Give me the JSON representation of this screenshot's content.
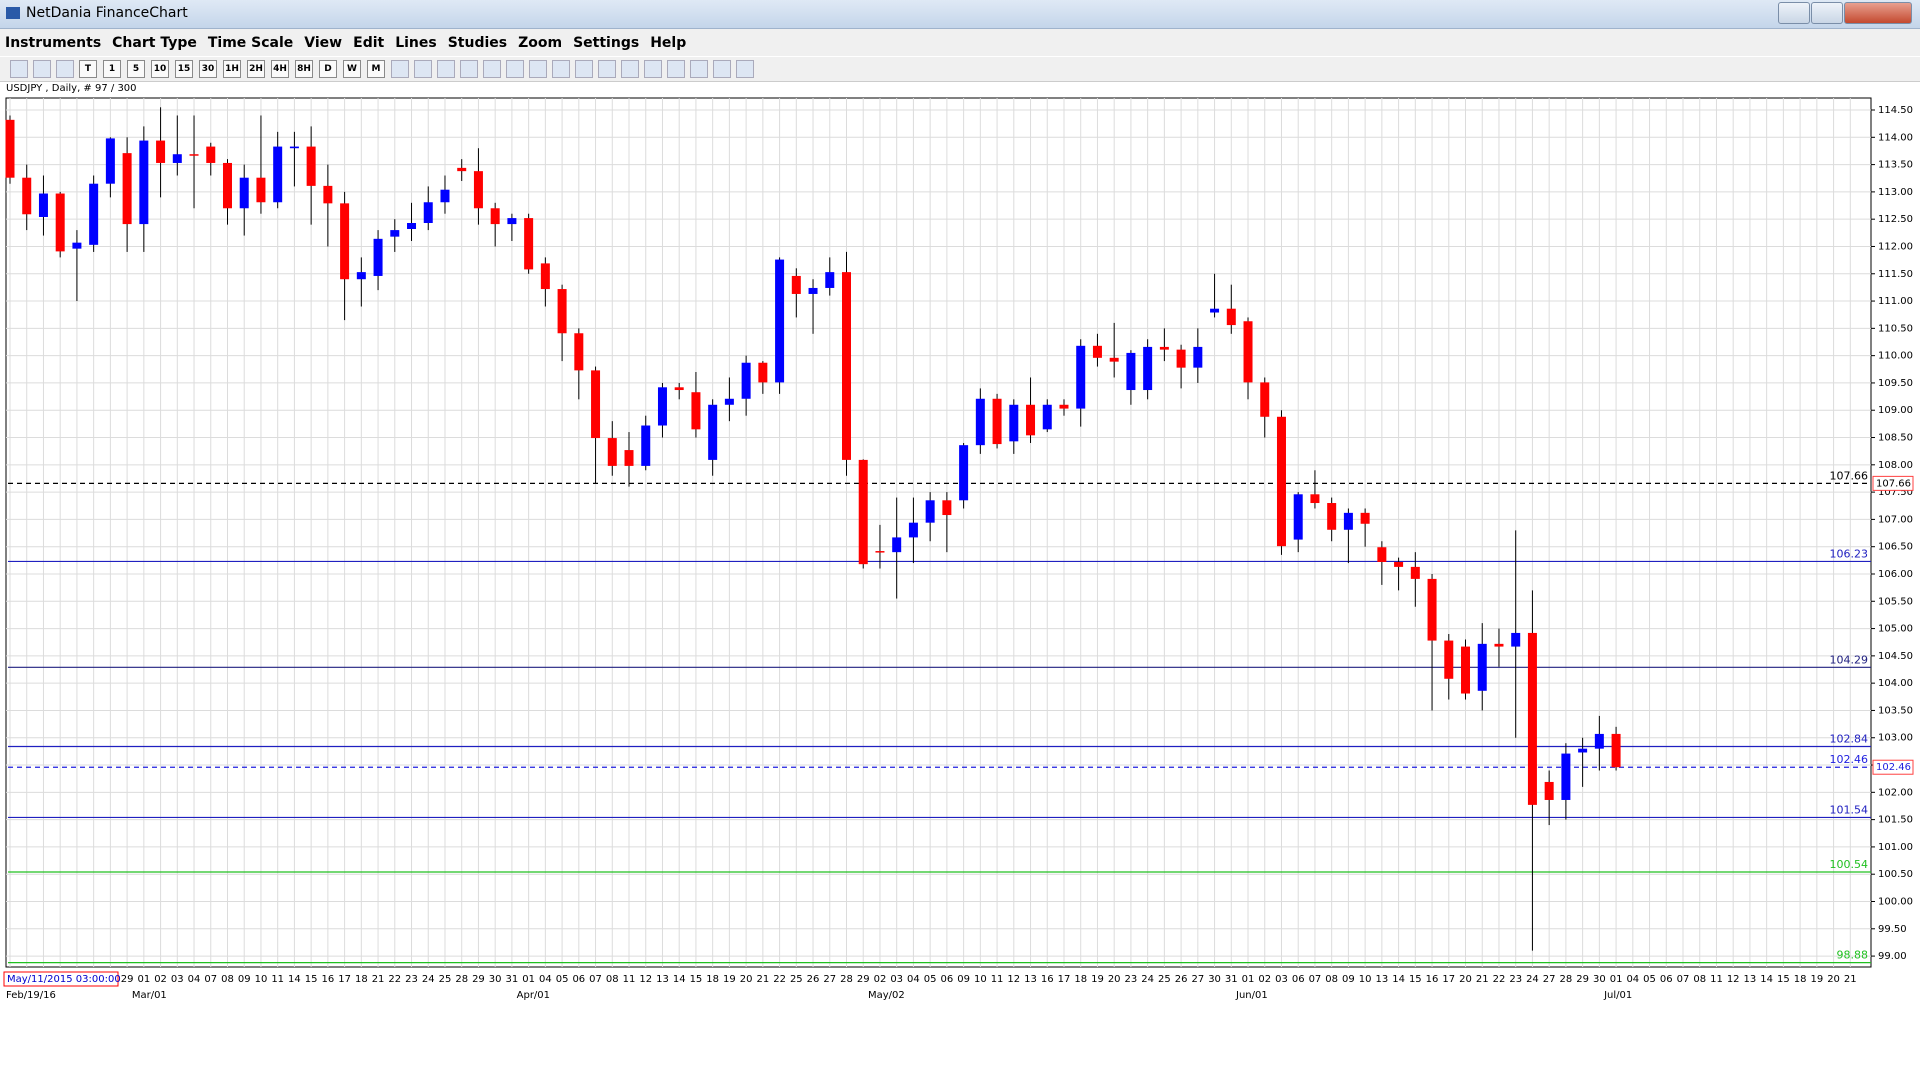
{
  "window_title": "NetDania FinanceChart",
  "menu": [
    "Instruments",
    "Chart Type",
    "Time Scale",
    "View",
    "Edit",
    "Lines",
    "Studies",
    "Zoom",
    "Settings",
    "Help"
  ],
  "toolbar": [
    "T",
    "1",
    "5",
    "10",
    "15",
    "30",
    "1H",
    "2H",
    "4H",
    "8H",
    "D",
    "W",
    "M"
  ],
  "chart_data": {
    "type": "candlestick",
    "title": "USDJPY , Daily, # 97 / 300",
    "categories": [
      null,
      null,
      null,
      null,
      null,
      null,
      null,
      "29",
      "01",
      "02",
      "03",
      "04",
      "07",
      "08",
      "09",
      "10",
      "11",
      "14",
      "15",
      "16",
      "17",
      "18",
      "21",
      "22",
      "23",
      "24",
      "25",
      "28",
      "29",
      "30",
      "31",
      "01",
      "04",
      "05",
      "06",
      "07",
      "08",
      "11",
      "12",
      "13",
      "14",
      "15",
      "18",
      "19",
      "20",
      "21",
      "22",
      "25",
      "26",
      "27",
      "28",
      "29",
      "02",
      "03",
      "04",
      "05",
      "06",
      "09",
      "10",
      "11",
      "12",
      "13",
      "16",
      "17",
      "18",
      "19",
      "20",
      "23",
      "24",
      "25",
      "26",
      "27",
      "30",
      "31",
      "01",
      "02",
      "03",
      "06",
      "07",
      "08",
      "09",
      "10",
      "13",
      "14",
      "15",
      "16",
      "17",
      "20",
      "21",
      "22",
      "23",
      "24",
      "27",
      "28",
      "29",
      "30",
      "01",
      "04",
      "05",
      "06",
      "07",
      "08",
      "11",
      "12",
      "13",
      "14",
      "15",
      "18",
      "19",
      "20",
      "21"
    ],
    "period_labels": [
      "Feb/19/16",
      null,
      null,
      null,
      null,
      null,
      null,
      null,
      "Mar/01",
      null,
      null,
      null,
      null,
      null,
      null,
      null,
      null,
      null,
      null,
      null,
      null,
      null,
      null,
      null,
      null,
      null,
      null,
      null,
      null,
      null,
      null,
      "Apr/01",
      null,
      null,
      null,
      null,
      null,
      null,
      null,
      null,
      null,
      null,
      null,
      null,
      null,
      null,
      null,
      null,
      null,
      null,
      null,
      null,
      "May/02",
      null,
      null,
      null,
      null,
      null,
      null,
      null,
      null,
      null,
      null,
      null,
      null,
      null,
      null,
      null,
      null,
      null,
      null,
      null,
      null,
      null,
      "Jun/01",
      null,
      null,
      null,
      null,
      null,
      null,
      null,
      null,
      null,
      null,
      null,
      null,
      null,
      null,
      null,
      null,
      null,
      null,
      null,
      null,
      null,
      "Jul/01",
      null,
      null,
      null,
      null,
      null,
      null,
      null,
      null,
      null,
      null,
      null,
      null,
      null,
      null
    ],
    "up_color": "#0000ff",
    "down_color": "#ff0000",
    "open": [
      114.32,
      113.26,
      112.54,
      112.97,
      111.96,
      112.03,
      113.15,
      113.71,
      112.41,
      113.94,
      113.53,
      113.69,
      113.83,
      113.53,
      112.7,
      113.26,
      112.81,
      113.8,
      113.83,
      113.11,
      112.79,
      111.4,
      111.46,
      112.18,
      112.32,
      112.43,
      112.81,
      113.44,
      113.38,
      112.7,
      112.41,
      112.52,
      111.69,
      111.22,
      110.41,
      109.73,
      108.49,
      108.27,
      107.98,
      108.72,
      109.42,
      109.33,
      108.09,
      109.1,
      109.21,
      109.87,
      109.51,
      111.46,
      111.13,
      111.24,
      111.53,
      108.09,
      106.42,
      106.4,
      106.67,
      106.94,
      107.35,
      107.35,
      108.36,
      109.21,
      108.43,
      109.1,
      108.65,
      109.1,
      109.03,
      110.18,
      109.96,
      109.37,
      109.37,
      110.16,
      110.11,
      109.78,
      110.79,
      110.86,
      110.63,
      109.51,
      108.88,
      106.63,
      107.46,
      107.3,
      106.81,
      107.12,
      106.49,
      106.22,
      106.13,
      105.91,
      104.78,
      104.67,
      103.86,
      104.72,
      104.67,
      104.92,
      102.19,
      101.86,
      102.73,
      102.8,
      103.07,
      null,
      null,
      null,
      null,
      null,
      null,
      null,
      null,
      null,
      null,
      null,
      null,
      null,
      null
    ],
    "high": [
      114.4,
      113.5,
      113.3,
      113.0,
      112.3,
      113.3,
      114.0,
      114.0,
      114.2,
      114.55,
      114.4,
      114.4,
      113.9,
      113.6,
      113.5,
      114.4,
      114.1,
      114.1,
      114.2,
      113.5,
      113.0,
      111.8,
      112.3,
      112.5,
      112.8,
      113.1,
      113.3,
      113.6,
      113.8,
      112.8,
      112.6,
      112.6,
      111.8,
      111.3,
      110.5,
      109.8,
      108.8,
      108.6,
      108.9,
      109.5,
      109.5,
      109.7,
      109.2,
      109.6,
      110.0,
      109.9,
      111.8,
      111.6,
      111.4,
      111.8,
      111.9,
      108.1,
      106.9,
      107.4,
      107.4,
      107.5,
      107.5,
      108.4,
      109.4,
      109.3,
      109.2,
      109.6,
      109.2,
      109.2,
      110.3,
      110.4,
      110.6,
      110.1,
      110.3,
      110.5,
      110.2,
      110.5,
      111.5,
      111.3,
      110.7,
      109.6,
      109.0,
      107.5,
      107.9,
      107.4,
      107.2,
      107.2,
      106.6,
      106.3,
      106.4,
      106.0,
      104.9,
      104.8,
      105.1,
      105.0,
      106.8,
      105.7,
      102.4,
      102.9,
      103.0,
      103.4,
      103.2,
      null,
      null,
      null,
      null,
      null,
      null,
      null,
      null,
      null,
      null,
      null,
      null,
      null,
      null
    ],
    "low": [
      113.15,
      112.3,
      112.2,
      111.8,
      111.0,
      111.9,
      112.9,
      111.9,
      111.9,
      112.9,
      113.3,
      112.7,
      113.3,
      112.4,
      112.2,
      112.6,
      112.7,
      113.1,
      112.4,
      112.0,
      110.65,
      110.9,
      111.2,
      111.9,
      112.1,
      112.3,
      112.6,
      113.2,
      112.4,
      112.0,
      112.1,
      111.5,
      110.9,
      109.9,
      109.2,
      107.65,
      107.8,
      107.6,
      107.9,
      108.5,
      109.2,
      108.5,
      107.8,
      108.8,
      108.9,
      109.3,
      109.3,
      110.7,
      110.4,
      111.1,
      107.8,
      106.1,
      106.1,
      105.55,
      106.2,
      106.6,
      106.4,
      107.2,
      108.2,
      108.3,
      108.2,
      108.4,
      108.6,
      108.9,
      108.7,
      109.8,
      109.6,
      109.1,
      109.2,
      109.9,
      109.4,
      109.5,
      110.7,
      110.4,
      109.2,
      108.5,
      106.35,
      106.4,
      107.2,
      106.6,
      106.2,
      106.5,
      105.8,
      105.7,
      105.4,
      103.5,
      103.7,
      103.7,
      103.5,
      104.3,
      103.0,
      99.1,
      101.4,
      101.5,
      102.1,
      102.4,
      102.4,
      null,
      null,
      null,
      null,
      null,
      null,
      null,
      null,
      null,
      null,
      null,
      null,
      null,
      null
    ],
    "close": [
      113.26,
      112.59,
      112.97,
      111.91,
      112.07,
      113.15,
      113.98,
      112.41,
      113.94,
      113.53,
      113.69,
      113.67,
      113.53,
      112.7,
      113.26,
      112.81,
      113.83,
      113.83,
      113.11,
      112.79,
      111.4,
      111.53,
      112.14,
      112.3,
      112.43,
      112.81,
      113.04,
      113.38,
      112.7,
      112.41,
      112.52,
      111.58,
      111.22,
      110.41,
      109.73,
      108.49,
      107.98,
      107.98,
      108.72,
      109.42,
      109.37,
      108.65,
      109.1,
      109.21,
      109.87,
      109.51,
      111.76,
      111.13,
      111.24,
      111.53,
      108.09,
      106.18,
      106.4,
      106.67,
      106.94,
      107.35,
      107.08,
      108.36,
      109.21,
      108.38,
      109.1,
      108.54,
      109.1,
      109.03,
      110.18,
      109.96,
      109.89,
      110.05,
      110.16,
      110.11,
      109.78,
      110.16,
      110.86,
      110.56,
      109.51,
      108.88,
      106.51,
      107.46,
      107.3,
      106.81,
      107.12,
      106.92,
      106.22,
      106.13,
      105.91,
      104.78,
      104.08,
      103.81,
      104.72,
      104.67,
      104.92,
      101.77,
      101.86,
      102.71,
      102.8,
      103.07,
      102.46,
      null,
      null,
      null,
      null,
      null,
      null,
      null,
      null,
      null,
      null,
      null,
      null,
      null,
      null
    ],
    "ylim": [
      98.8,
      114.72
    ],
    "yticks": [
      {
        "value": 99,
        "label": "99.00"
      },
      {
        "value": 99.5,
        "label": "99.50"
      },
      {
        "value": 100,
        "label": "100.00"
      },
      {
        "value": 100.5,
        "label": "100.50"
      },
      {
        "value": 101,
        "label": "101.00"
      },
      {
        "value": 101.5,
        "label": "101.50"
      },
      {
        "value": 102,
        "label": "102.00"
      },
      {
        "value": 102.5,
        "label": "102.50"
      },
      {
        "value": 103,
        "label": "103.00"
      },
      {
        "value": 103.5,
        "label": "103.50"
      },
      {
        "value": 104,
        "label": "104.00"
      },
      {
        "value": 104.5,
        "label": "104.50"
      },
      {
        "value": 105,
        "label": "105.00"
      },
      {
        "value": 105.5,
        "label": "105.50"
      },
      {
        "value": 106,
        "label": "106.00"
      },
      {
        "value": 106.5,
        "label": "106.50"
      },
      {
        "value": 107,
        "label": "107.00"
      },
      {
        "value": 107.5,
        "label": "107.50"
      },
      {
        "value": 108,
        "label": "108.00"
      },
      {
        "value": 108.5,
        "label": "108.50"
      },
      {
        "value": 109,
        "label": "109.00"
      },
      {
        "value": 109.5,
        "label": "109.50"
      },
      {
        "value": 110,
        "label": "110.00"
      },
      {
        "value": 110.5,
        "label": "110.50"
      },
      {
        "value": 111,
        "label": "111.00"
      },
      {
        "value": 111.5,
        "label": "111.50"
      },
      {
        "value": 112,
        "label": "112.00"
      },
      {
        "value": 112.5,
        "label": "112.50"
      },
      {
        "value": 113,
        "label": "113.00"
      },
      {
        "value": 113.5,
        "label": "113.50"
      },
      {
        "value": 114,
        "label": "114.00"
      },
      {
        "value": 114.5,
        "label": "114.50"
      }
    ],
    "grid": true,
    "lines": [
      {
        "value": 107.66,
        "color": "#000000",
        "dashed": true,
        "axis_box": true
      },
      {
        "value": 106.23,
        "color": "#2020c0",
        "dashed": false,
        "axis_box": false
      },
      {
        "value": 104.29,
        "color": "#202080",
        "dashed": false,
        "axis_box": false
      },
      {
        "value": 102.84,
        "color": "#2020c0",
        "dashed": false,
        "axis_box": false
      },
      {
        "value": 102.46,
        "color": "#2020e0",
        "dashed": true,
        "axis_box": true
      },
      {
        "value": 101.54,
        "color": "#2020c0",
        "dashed": false,
        "axis_box": false
      },
      {
        "value": 100.54,
        "color": "#20c020",
        "dashed": false,
        "axis_box": false
      },
      {
        "value": 98.88,
        "color": "#20c020",
        "dashed": false,
        "axis_box": false
      }
    ],
    "cursor_time": "May/11/2015 03:00:00"
  }
}
